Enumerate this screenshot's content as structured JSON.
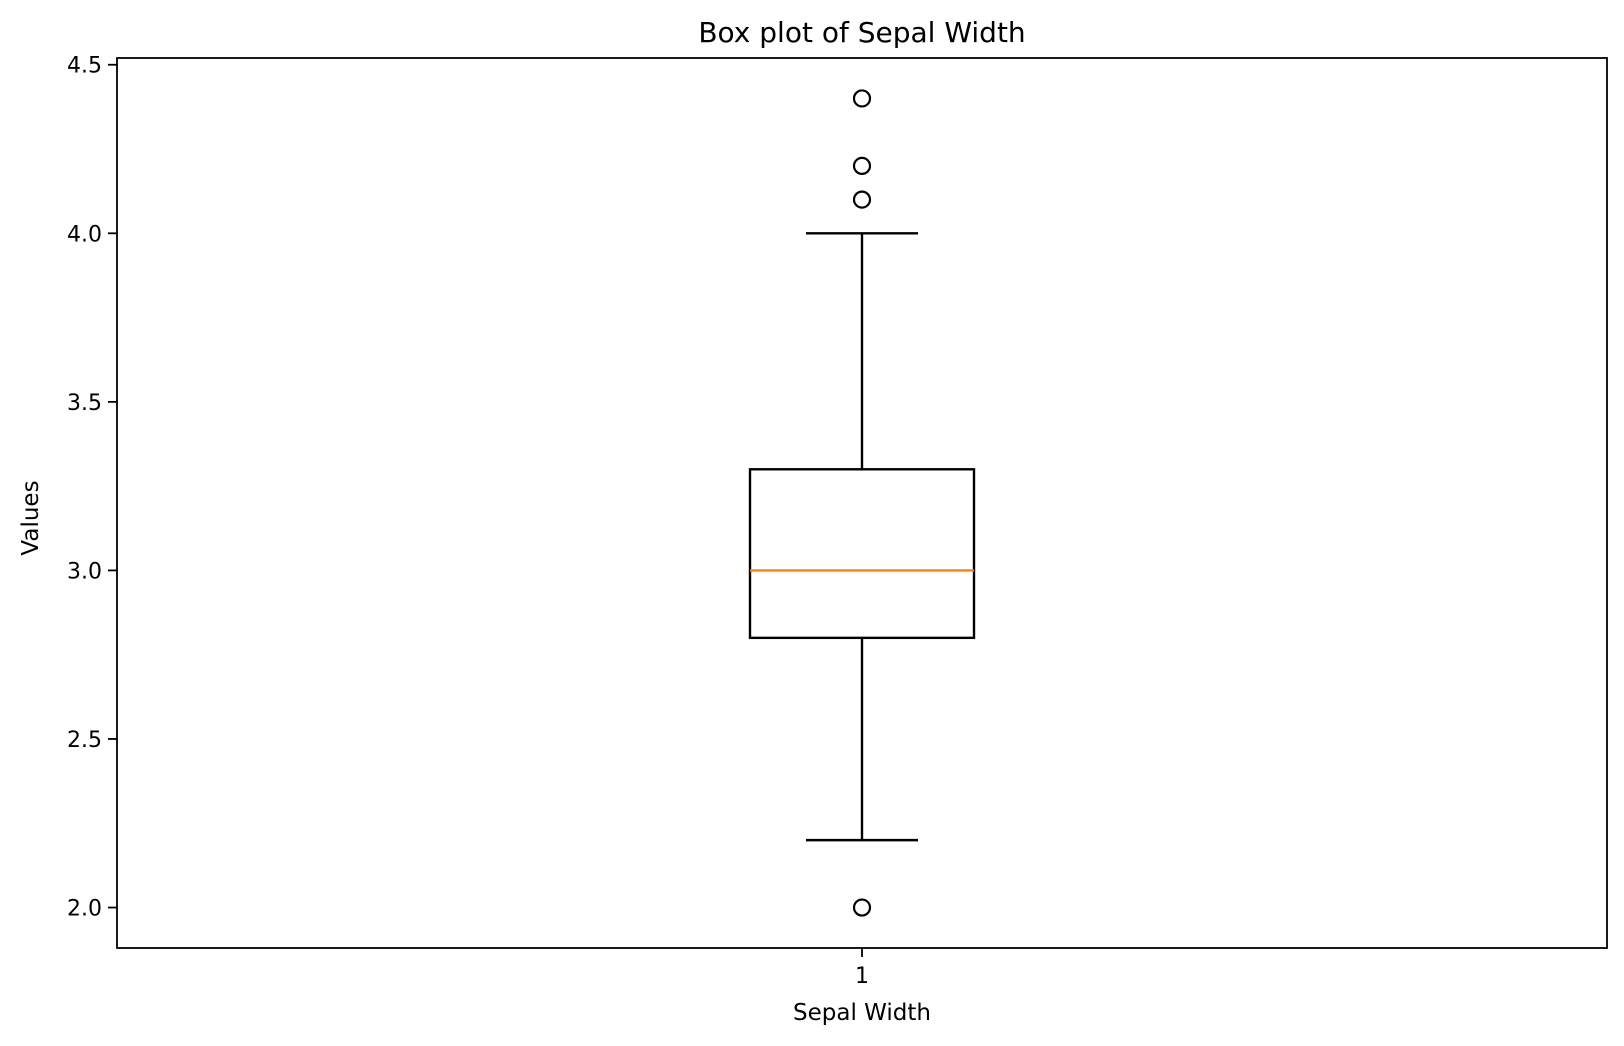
{
  "chart_data": {
    "type": "box",
    "title": "Box plot of Sepal Width",
    "xlabel": "Sepal Width",
    "ylabel": "Values",
    "categories": [
      "1"
    ],
    "ylim": [
      1.88,
      4.52
    ],
    "yticks": [
      "2.0",
      "2.5",
      "3.0",
      "3.5",
      "4.0",
      "4.5"
    ],
    "box": {
      "whisker_low": 2.2,
      "q1": 2.8,
      "median": 3.0,
      "q3": 3.3,
      "whisker_high": 4.0,
      "outliers": [
        2.0,
        4.1,
        4.2,
        4.4
      ]
    },
    "grid": false,
    "colors": {
      "box": "#000000",
      "median": "#ff7f0e",
      "outlier": "#000000"
    }
  }
}
